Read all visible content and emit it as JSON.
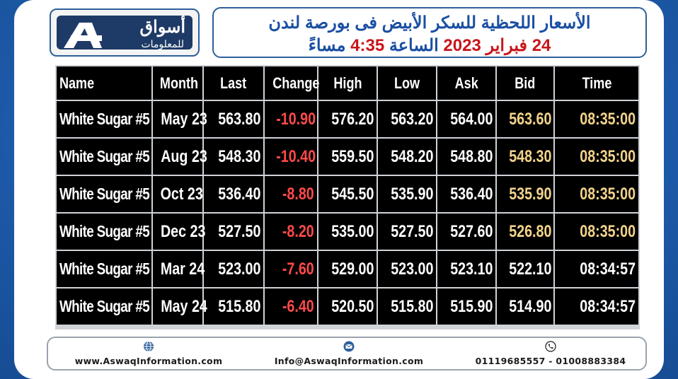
{
  "header": {
    "logo": {
      "name_ar": "أسواق",
      "sub_ar": "للمعلومات"
    },
    "title_line1": "الأسعار اللحظية للسكر الأبيض فى بورصة لندن",
    "title_date": "24 فبراير 2023",
    "title_time_label": "الساعة",
    "title_time": "4:35",
    "title_period": "مساءً"
  },
  "table": {
    "columns": [
      "Name",
      "Month",
      "Last",
      "Change",
      "High",
      "Low",
      "Ask",
      "Bid",
      "Time"
    ],
    "rows": [
      {
        "name": "White Sugar #5",
        "month": "May 23",
        "last": "563.80",
        "change": "-10.90",
        "high": "576.20",
        "low": "563.20",
        "ask": "564.00",
        "bid": "563.60",
        "time": "08:35:00",
        "bid_highlight": true,
        "time_highlight": true
      },
      {
        "name": "White Sugar #5",
        "month": "Aug 23",
        "last": "548.30",
        "change": "-10.40",
        "high": "559.50",
        "low": "548.20",
        "ask": "548.80",
        "bid": "548.30",
        "time": "08:35:00",
        "bid_highlight": true,
        "time_highlight": true
      },
      {
        "name": "White Sugar #5",
        "month": "Oct 23",
        "last": "536.40",
        "change": "-8.80",
        "high": "545.50",
        "low": "535.90",
        "ask": "536.40",
        "bid": "535.90",
        "time": "08:35:00",
        "bid_highlight": true,
        "time_highlight": true
      },
      {
        "name": "White Sugar #5",
        "month": "Dec 23",
        "last": "527.50",
        "change": "-8.20",
        "high": "535.00",
        "low": "527.50",
        "ask": "527.60",
        "bid": "526.80",
        "time": "08:35:00",
        "bid_highlight": true,
        "time_highlight": true
      },
      {
        "name": "White Sugar #5",
        "month": "Mar 24",
        "last": "523.00",
        "change": "-7.60",
        "high": "529.00",
        "low": "523.00",
        "ask": "523.10",
        "bid": "522.10",
        "time": "08:34:57",
        "bid_highlight": false,
        "time_highlight": false
      },
      {
        "name": "White Sugar #5",
        "month": "May 24",
        "last": "515.80",
        "change": "-6.40",
        "high": "520.50",
        "low": "515.80",
        "ask": "515.90",
        "bid": "514.90",
        "time": "08:34:57",
        "bid_highlight": false,
        "time_highlight": false
      }
    ]
  },
  "footer": {
    "website": "www.AswaqInformation.com",
    "email": "Info@AswaqInformation.com",
    "phones": "01119685557 - 01008883384",
    "icons": [
      "globe-icon",
      "envelope-icon",
      "phone-icon"
    ]
  },
  "colors": {
    "background": "#1f5fb0",
    "title_blue": "#1a4fa3",
    "title_red": "#c8151b",
    "negative": "#ff4a4a",
    "highlight": "#f3d38a"
  }
}
